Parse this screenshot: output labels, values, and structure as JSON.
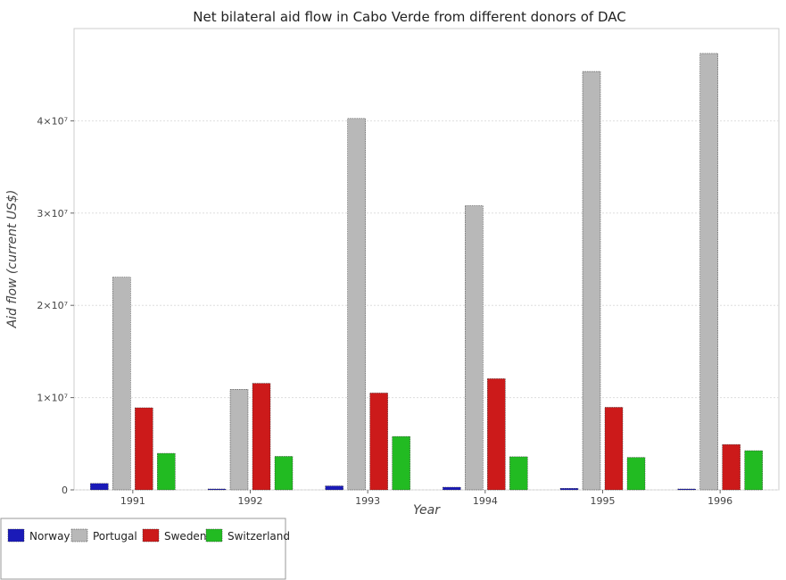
{
  "chart_data": {
    "type": "bar",
    "title": "Net bilateral aid flow in Cabo Verde from different donors of DAC",
    "xlabel": "Year",
    "ylabel": "Aid flow (current US$)",
    "categories": [
      "1991",
      "1992",
      "1993",
      "1994",
      "1995",
      "1996"
    ],
    "ylim": [
      0,
      50000000
    ],
    "yticks": [
      0,
      10000000,
      20000000,
      30000000,
      40000000
    ],
    "ytick_labels": [
      "0",
      "1×10⁷",
      "2×10⁷",
      "3×10⁷",
      "4×10⁷"
    ],
    "grid": true,
    "legend_position": "bottom-left",
    "series": [
      {
        "name": "Norway",
        "color": "#1a1ab8",
        "values": [
          700000,
          100000,
          430000,
          290000,
          170000,
          100000
        ]
      },
      {
        "name": "Portugal",
        "color": "#b8b8b8",
        "values": [
          23050000,
          10900000,
          40250000,
          30800000,
          45350000,
          47300000
        ]
      },
      {
        "name": "Sweden",
        "color": "#cc1a1a",
        "values": [
          8900000,
          11550000,
          10500000,
          12050000,
          8950000,
          4920000
        ]
      },
      {
        "name": "Switzerland",
        "color": "#22bb22",
        "values": [
          3960000,
          3630000,
          5790000,
          3590000,
          3520000,
          4250000
        ]
      }
    ]
  }
}
